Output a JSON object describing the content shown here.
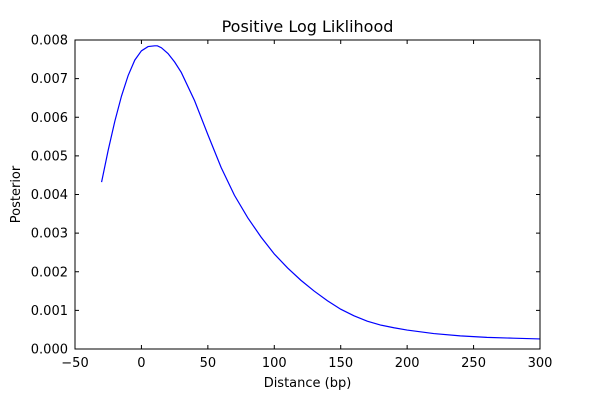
{
  "chart_data": {
    "type": "line",
    "title": "Positive Log Liklihood",
    "xlabel": "Distance (bp)",
    "ylabel": "Posterior",
    "xlim": [
      -50,
      300
    ],
    "ylim": [
      0,
      0.008
    ],
    "x_ticks": [
      "−50",
      "0",
      "50",
      "100",
      "150",
      "200",
      "250",
      "300"
    ],
    "y_ticks": [
      "0.000",
      "0.001",
      "0.002",
      "0.003",
      "0.004",
      "0.005",
      "0.006",
      "0.007",
      "0.008"
    ],
    "grid": false,
    "series": [
      {
        "color": "#0000ff",
        "x": [
          -30,
          -25,
          -20,
          -15,
          -10,
          -5,
          0,
          5,
          10,
          12,
          15,
          20,
          25,
          30,
          40,
          50,
          60,
          70,
          80,
          90,
          100,
          110,
          120,
          130,
          140,
          150,
          160,
          170,
          180,
          190,
          200,
          220,
          240,
          260,
          280,
          300
        ],
        "y": [
          0.00432,
          0.00515,
          0.0059,
          0.00655,
          0.00708,
          0.00748,
          0.00772,
          0.00783,
          0.00785,
          0.00785,
          0.0078,
          0.00765,
          0.00743,
          0.00716,
          0.00643,
          0.00555,
          0.0047,
          0.00398,
          0.0034,
          0.0029,
          0.00246,
          0.0021,
          0.00178,
          0.0015,
          0.00125,
          0.00103,
          0.00086,
          0.00072,
          0.00062,
          0.00055,
          0.00049,
          0.0004,
          0.00034,
          0.0003,
          0.00028,
          0.00026
        ]
      }
    ]
  }
}
